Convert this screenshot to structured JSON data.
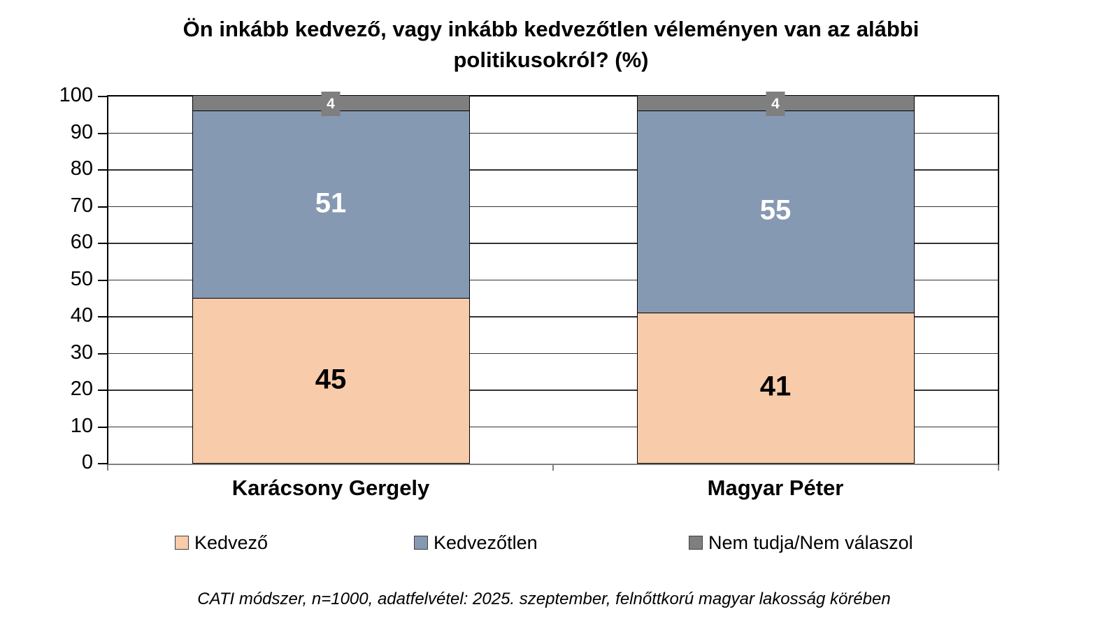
{
  "title": "Ön inkább kedvező, vagy inkább kedvezőtlen véleményen van az alábbi politikusokról? (%)",
  "footnote": "CATI módszer, n=1000, adatfelvétel: 2025. szeptember, felnőttkorú magyar lakosság körében",
  "chart_data": {
    "type": "bar",
    "stacked": true,
    "title": "Ön inkább kedvező, vagy inkább kedvezőtlen véleményen van az alábbi politikusokról? (%)",
    "categories": [
      "Karácsony Gergely",
      "Magyar Péter"
    ],
    "series": [
      {
        "name": "Kedvező",
        "color": "#F8CBAA",
        "label_color": "#000000",
        "label_style": "plain",
        "values": [
          45,
          41
        ]
      },
      {
        "name": "Kedvezőtlen",
        "color": "#8699B2",
        "label_color": "#FFFFFF",
        "label_style": "plain",
        "values": [
          51,
          55
        ]
      },
      {
        "name": "Nem tudja/Nem válaszol",
        "color": "#7F7F7F",
        "label_color": "#FFFFFF",
        "label_style": "boxed",
        "values": [
          4,
          4
        ]
      }
    ],
    "ylim": [
      0,
      100
    ],
    "yticks": [
      0,
      10,
      20,
      30,
      40,
      50,
      60,
      70,
      80,
      90,
      100
    ],
    "grid": "horizontal",
    "legend_position": "bottom",
    "axis_color": "#7f7f7f",
    "gridline_color": "#333333"
  }
}
